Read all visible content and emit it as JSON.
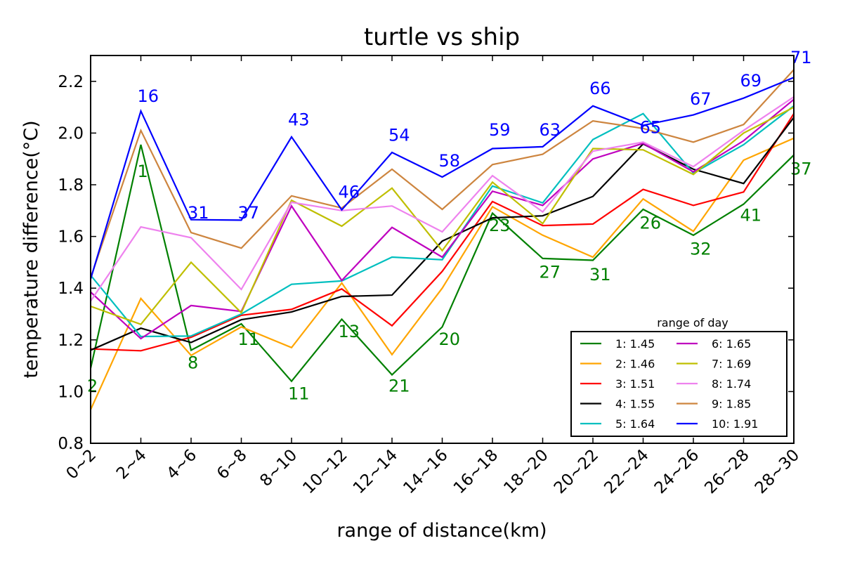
{
  "chart_data": {
    "type": "line",
    "title": "turtle vs ship",
    "xlabel": "range of distance(km)",
    "ylabel": "temperature difference(°C)",
    "categories": [
      "0~2",
      "2~4",
      "4~6",
      "6~8",
      "8~10",
      "10~12",
      "12~14",
      "14~16",
      "16~18",
      "18~20",
      "20~22",
      "22~24",
      "24~26",
      "26~28",
      "28~30"
    ],
    "ylim": [
      0.8,
      2.3
    ],
    "yticks": [
      "0.8",
      "1.0",
      "1.2",
      "1.4",
      "1.6",
      "1.8",
      "2.0",
      "2.2"
    ],
    "legend": {
      "title": "range of day",
      "location": "lower right",
      "columns": 2
    },
    "series": [
      {
        "name": "1: 1.45",
        "color": "#008000",
        "values": [
          1.09,
          1.955,
          1.16,
          1.262,
          1.04,
          1.28,
          1.065,
          1.25,
          1.69,
          1.515,
          1.508,
          1.705,
          1.605,
          1.725,
          1.915
        ]
      },
      {
        "name": "2: 1.46",
        "color": "#ffa500",
        "values": [
          0.93,
          1.36,
          1.14,
          1.25,
          1.17,
          1.42,
          1.143,
          1.4,
          1.715,
          1.605,
          1.52,
          1.745,
          1.62,
          1.895,
          1.98
        ]
      },
      {
        "name": "3: 1.51",
        "color": "#ff0000",
        "values": [
          1.165,
          1.158,
          1.21,
          1.295,
          1.318,
          1.397,
          1.255,
          1.465,
          1.735,
          1.642,
          1.648,
          1.782,
          1.72,
          1.772,
          2.075
        ]
      },
      {
        "name": "4: 1.55",
        "color": "#000000",
        "values": [
          1.16,
          1.245,
          1.19,
          1.278,
          1.308,
          1.368,
          1.373,
          1.582,
          1.672,
          1.68,
          1.755,
          1.958,
          1.86,
          1.805,
          2.06
        ]
      },
      {
        "name": "5: 1.64",
        "color": "#00bfbf",
        "values": [
          1.45,
          1.213,
          1.215,
          1.3,
          1.415,
          1.428,
          1.52,
          1.51,
          1.795,
          1.73,
          1.975,
          2.075,
          1.845,
          1.955,
          2.105
        ]
      },
      {
        "name": "6: 1.65",
        "color": "#bf00bf",
        "values": [
          1.385,
          1.205,
          1.333,
          1.31,
          1.718,
          1.43,
          1.635,
          1.52,
          1.775,
          1.72,
          1.9,
          1.96,
          1.85,
          1.97,
          2.13
        ]
      },
      {
        "name": "7: 1.69",
        "color": "#bfbf00",
        "values": [
          1.33,
          1.26,
          1.5,
          1.305,
          1.74,
          1.64,
          1.787,
          1.545,
          1.81,
          1.65,
          1.94,
          1.935,
          1.84,
          2.0,
          2.1
        ]
      },
      {
        "name": "8: 1.74",
        "color": "#ee82ee",
        "values": [
          1.35,
          1.637,
          1.595,
          1.395,
          1.732,
          1.7,
          1.718,
          1.618,
          1.835,
          1.695,
          1.93,
          1.965,
          1.87,
          2.01,
          2.14
        ]
      },
      {
        "name": "9: 1.85",
        "color": "#cd853f",
        "values": [
          1.44,
          2.01,
          1.615,
          1.555,
          1.757,
          1.71,
          1.86,
          1.705,
          1.878,
          1.918,
          2.047,
          2.018,
          1.965,
          2.033,
          2.245
        ]
      },
      {
        "name": "10: 1.91",
        "color": "#0000ff",
        "values": [
          1.435,
          2.085,
          1.665,
          1.663,
          1.985,
          1.703,
          1.925,
          1.83,
          1.94,
          1.947,
          2.105,
          2.03,
          2.07,
          2.135,
          2.215
        ]
      }
    ],
    "annotations": [
      {
        "text": "2",
        "color": "#008000",
        "x": "0~2",
        "y": 1.0
      },
      {
        "text": "1",
        "color": "#008000",
        "x": "2~4",
        "y": 1.83
      },
      {
        "text": "8",
        "color": "#008000",
        "x": "4~6",
        "y": 1.09
      },
      {
        "text": "11",
        "color": "#008000",
        "x": "6~8",
        "y": 1.18
      },
      {
        "text": "11",
        "color": "#008000",
        "x": "8~10",
        "y": 0.97
      },
      {
        "text": "13",
        "color": "#008000",
        "x": "10~12",
        "y": 1.21
      },
      {
        "text": "21",
        "color": "#008000",
        "x": "12~14",
        "y": 1.0
      },
      {
        "text": "20",
        "color": "#008000",
        "x": "14~16",
        "y": 1.18
      },
      {
        "text": "23",
        "color": "#008000",
        "x": "16~18",
        "y": 1.62
      },
      {
        "text": "27",
        "color": "#008000",
        "x": "18~20",
        "y": 1.44
      },
      {
        "text": "31",
        "color": "#008000",
        "x": "20~22",
        "y": 1.43
      },
      {
        "text": "26",
        "color": "#008000",
        "x": "22~24",
        "y": 1.63
      },
      {
        "text": "32",
        "color": "#008000",
        "x": "24~26",
        "y": 1.53
      },
      {
        "text": "41",
        "color": "#008000",
        "x": "26~28",
        "y": 1.66
      },
      {
        "text": "37",
        "color": "#008000",
        "x": "28~30",
        "y": 1.84
      },
      {
        "text": "16",
        "color": "#0000ff",
        "x": "2~4",
        "y": 2.12
      },
      {
        "text": "31",
        "color": "#0000ff",
        "x": "4~6",
        "y": 1.67
      },
      {
        "text": "37",
        "color": "#0000ff",
        "x": "6~8",
        "y": 1.67
      },
      {
        "text": "43",
        "color": "#0000ff",
        "x": "8~10",
        "y": 2.03
      },
      {
        "text": "46",
        "color": "#0000ff",
        "x": "10~12",
        "y": 1.75
      },
      {
        "text": "54",
        "color": "#0000ff",
        "x": "12~14",
        "y": 1.97
      },
      {
        "text": "58",
        "color": "#0000ff",
        "x": "14~16",
        "y": 1.87
      },
      {
        "text": "59",
        "color": "#0000ff",
        "x": "16~18",
        "y": 1.99
      },
      {
        "text": "63",
        "color": "#0000ff",
        "x": "18~20",
        "y": 1.99
      },
      {
        "text": "66",
        "color": "#0000ff",
        "x": "20~22",
        "y": 2.15
      },
      {
        "text": "65",
        "color": "#0000ff",
        "x": "22~24",
        "y": 2.0
      },
      {
        "text": "67",
        "color": "#0000ff",
        "x": "24~26",
        "y": 2.11
      },
      {
        "text": "69",
        "color": "#0000ff",
        "x": "26~28",
        "y": 2.18
      },
      {
        "text": "71",
        "color": "#0000ff",
        "x": "28~30",
        "y": 2.27
      }
    ]
  }
}
